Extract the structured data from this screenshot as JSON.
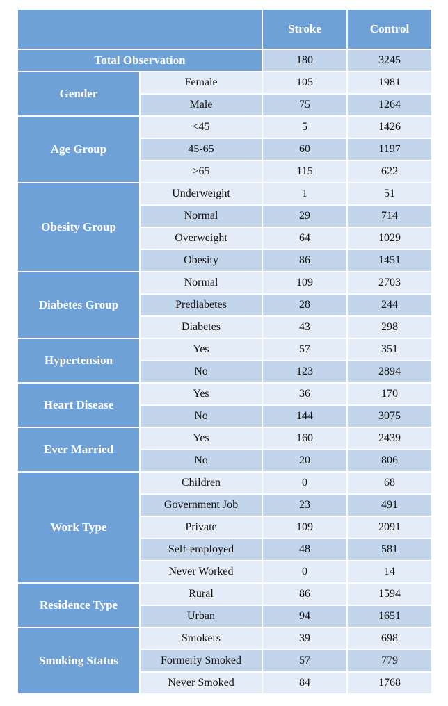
{
  "header": {
    "stroke": "Stroke",
    "control": "Control"
  },
  "total": {
    "label": "Total Observation",
    "stroke": "180",
    "control": "3245"
  },
  "groups": [
    {
      "label": "Gender",
      "rows": [
        {
          "category": "Female",
          "stroke": "105",
          "control": "1981"
        },
        {
          "category": "Male",
          "stroke": "75",
          "control": "1264"
        }
      ]
    },
    {
      "label": "Age Group",
      "rows": [
        {
          "category": "<45",
          "stroke": "5",
          "control": "1426"
        },
        {
          "category": "45-65",
          "stroke": "60",
          "control": "1197"
        },
        {
          "category": ">65",
          "stroke": "115",
          "control": "622"
        }
      ]
    },
    {
      "label": "Obesity Group",
      "rows": [
        {
          "category": "Underweight",
          "stroke": "1",
          "control": "51"
        },
        {
          "category": "Normal",
          "stroke": "29",
          "control": "714"
        },
        {
          "category": "Overweight",
          "stroke": "64",
          "control": "1029"
        },
        {
          "category": "Obesity",
          "stroke": "86",
          "control": "1451"
        }
      ]
    },
    {
      "label": "Diabetes Group",
      "rows": [
        {
          "category": "Normal",
          "stroke": "109",
          "control": "2703"
        },
        {
          "category": "Prediabetes",
          "stroke": "28",
          "control": "244"
        },
        {
          "category": "Diabetes",
          "stroke": "43",
          "control": "298"
        }
      ]
    },
    {
      "label": "Hypertension",
      "rows": [
        {
          "category": "Yes",
          "stroke": "57",
          "control": "351"
        },
        {
          "category": "No",
          "stroke": "123",
          "control": "2894"
        }
      ]
    },
    {
      "label": "Heart Disease",
      "rows": [
        {
          "category": "Yes",
          "stroke": "36",
          "control": "170"
        },
        {
          "category": "No",
          "stroke": "144",
          "control": "3075"
        }
      ]
    },
    {
      "label": "Ever Married",
      "rows": [
        {
          "category": "Yes",
          "stroke": "160",
          "control": "2439"
        },
        {
          "category": "No",
          "stroke": "20",
          "control": "806"
        }
      ]
    },
    {
      "label": "Work Type",
      "rows": [
        {
          "category": "Children",
          "stroke": "0",
          "control": "68"
        },
        {
          "category": "Government Job",
          "stroke": "23",
          "control": "491"
        },
        {
          "category": "Private",
          "stroke": "109",
          "control": "2091"
        },
        {
          "category": "Self-employed",
          "stroke": "48",
          "control": "581"
        },
        {
          "category": "Never Worked",
          "stroke": "0",
          "control": "14"
        }
      ]
    },
    {
      "label": "Residence Type",
      "rows": [
        {
          "category": "Rural",
          "stroke": "86",
          "control": "1594"
        },
        {
          "category": "Urban",
          "stroke": "94",
          "control": "1651"
        }
      ]
    },
    {
      "label": "Smoking Status",
      "rows": [
        {
          "category": "Smokers",
          "stroke": "39",
          "control": "698"
        },
        {
          "category": "Formerly Smoked",
          "stroke": "57",
          "control": "779"
        },
        {
          "category": "Never Smoked",
          "stroke": "84",
          "control": "1768"
        }
      ]
    }
  ]
}
